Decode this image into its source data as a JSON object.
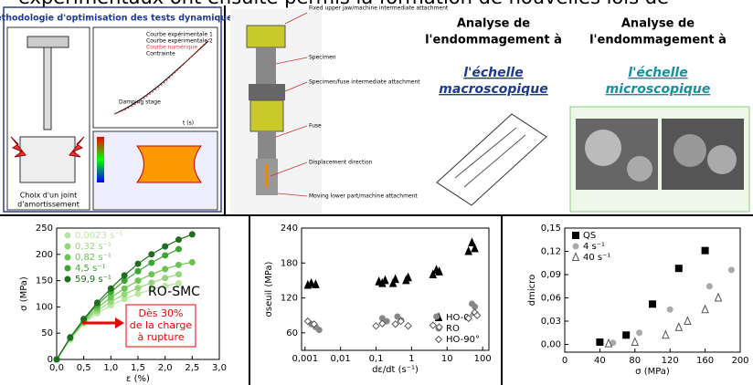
{
  "header": {
    "text": "expérimentaux ont ensuite permis la formation de nouvelles lois de"
  },
  "panel_method": {
    "title": "Méthodologie d'optimisation des tests dynamiques",
    "caption": [
      "Choix d'un joint",
      "d'amortissement"
    ],
    "plot_legend": [
      "Courbe expérimentale 1",
      "Courbe expérimentale 2",
      "Courbe numérique",
      "Contrainte"
    ],
    "plot_note": "Damping stage",
    "plot_xlabel": "t (s)"
  },
  "panel_setup": {
    "labels": [
      "Fixed upper jaw/machine intermediate attachment",
      "Specimen",
      "Specimen/fuse intermediate attachment",
      "Fuse",
      "Displacement direction",
      "Moving lower part/machine attachment"
    ]
  },
  "panel_macro": {
    "heading": [
      "Analyse de",
      "l'endommagement à"
    ],
    "link": [
      "l'échelle",
      "macroscopique"
    ]
  },
  "panel_micro": {
    "heading": [
      "Analyse de",
      "l'endommagement à"
    ],
    "link": [
      "l'échelle",
      "microscopique"
    ]
  },
  "chart_data": [
    {
      "type": "line",
      "y_label": "σ (MPa)",
      "x_label": "ε (%)",
      "label": "RO-SMC",
      "annotation": [
        "Dès 30%",
        "de la charge",
        "à rupture"
      ],
      "x": [
        0,
        0.25,
        0.5,
        0.75,
        1,
        1.25,
        1.5,
        1.75,
        2,
        2.25,
        2.5
      ],
      "xlim": [
        0,
        3
      ],
      "xticks": [
        {
          "value": 0,
          "label": "0,0"
        },
        {
          "value": 0.5,
          "label": "0,5"
        },
        {
          "value": 1,
          "label": "1,0"
        },
        {
          "value": 1.5,
          "label": "1,5"
        },
        {
          "value": 2,
          "label": "2,0"
        },
        {
          "value": 2.5,
          "label": "2,5"
        },
        {
          "value": 3,
          "label": "3,0"
        }
      ],
      "ylim": [
        0,
        250
      ],
      "yticks": [
        0,
        50,
        100,
        150,
        200,
        250
      ],
      "legend": "upper left",
      "series": [
        {
          "name": "0,0023 s⁻¹",
          "color": "#b8e6a0",
          "values": [
            0,
            38,
            68,
            88,
            103,
            115,
            125,
            133,
            140,
            145,
            null
          ]
        },
        {
          "name": "0,32 s⁻¹",
          "color": "#94d77a",
          "values": [
            0,
            40,
            70,
            93,
            110,
            124,
            136,
            146,
            155,
            162,
            null
          ]
        },
        {
          "name": "0,82 s⁻¹",
          "color": "#6cc450",
          "values": [
            0,
            40,
            72,
            98,
            118,
            135,
            150,
            162,
            172,
            180,
            185
          ]
        },
        {
          "name": "4,5 s⁻¹",
          "color": "#3fa532",
          "values": [
            0,
            42,
            75,
            104,
            128,
            150,
            168,
            184,
            198,
            210,
            null
          ]
        },
        {
          "name": "59,9 s⁻¹",
          "color": "#1e6e1e",
          "values": [
            0,
            42,
            77,
            108,
            135,
            160,
            182,
            200,
            215,
            228,
            238
          ]
        }
      ]
    },
    {
      "type": "scatter",
      "y_label": "σseuil (MPa)",
      "x_label": "dε/dt (s⁻¹)",
      "xlog": true,
      "xlim": [
        0.0008,
        150
      ],
      "xticks": [
        {
          "value": 0.001,
          "label": "0,001"
        },
        {
          "value": 0.01,
          "label": "0,01"
        },
        {
          "value": 0.1,
          "label": "0,1"
        },
        1,
        10,
        100
      ],
      "ylim": [
        30,
        240
      ],
      "yticks": [
        60,
        120,
        180,
        240
      ],
      "legend": "lower right",
      "series": [
        {
          "name": "HO-0°",
          "color": "#000000",
          "marker": "triangle",
          "filled": true,
          "x": [
            0.0012,
            0.0015,
            0.002,
            0.12,
            0.15,
            0.18,
            0.3,
            0.35,
            0.7,
            0.8,
            4,
            5,
            6,
            40,
            50,
            60
          ],
          "values": [
            142,
            145,
            143,
            148,
            145,
            150,
            145,
            152,
            150,
            155,
            160,
            168,
            165,
            200,
            215,
            205
          ]
        },
        {
          "name": "RO",
          "color": "#888888",
          "marker": "circle",
          "filled": true,
          "x": [
            0.0015,
            0.002,
            0.0025,
            0.15,
            0.2,
            0.4,
            0.5,
            5,
            50,
            60
          ],
          "values": [
            75,
            70,
            65,
            85,
            80,
            88,
            82,
            88,
            110,
            105
          ]
        },
        {
          "name": "HO-90°",
          "color": "#555555",
          "marker": "diamond",
          "filled": false,
          "x": [
            0.0012,
            0.0018,
            0.1,
            0.15,
            0.35,
            0.5,
            0.8,
            4,
            6,
            40,
            60,
            70
          ],
          "values": [
            80,
            75,
            72,
            76,
            75,
            80,
            72,
            73,
            70,
            85,
            95,
            90
          ]
        }
      ]
    },
    {
      "type": "scatter",
      "y_label": "dmicro",
      "x_label": "σ (MPa)",
      "xlim": [
        0,
        200
      ],
      "xticks": [
        0,
        40,
        80,
        120,
        160,
        200
      ],
      "ylim": [
        -0.01,
        0.15
      ],
      "yticks": [
        {
          "value": 0,
          "label": "0,00"
        },
        {
          "value": 0.03,
          "label": "0,03"
        },
        {
          "value": 0.06,
          "label": "0,06"
        },
        {
          "value": 0.09,
          "label": "0,09"
        },
        {
          "value": 0.12,
          "label": "0,12"
        },
        {
          "value": 0.15,
          "label": "0,15"
        }
      ],
      "legend": "upper left",
      "series": [
        {
          "name": "QS",
          "color": "#000000",
          "marker": "square",
          "filled": true,
          "x": [
            40,
            70,
            100,
            130,
            160
          ],
          "values": [
            0.003,
            0.012,
            0.052,
            0.098,
            0.121
          ]
        },
        {
          "name": "4 s⁻¹",
          "color": "#aaaaaa",
          "marker": "circle",
          "filled": true,
          "x": [
            55,
            85,
            120,
            165,
            190
          ],
          "values": [
            0.002,
            0.015,
            0.045,
            0.075,
            0.096
          ]
        },
        {
          "name": "40 s⁻¹",
          "color": "#555555",
          "marker": "triangle",
          "filled": false,
          "x": [
            50,
            80,
            115,
            130,
            140,
            160,
            175
          ],
          "values": [
            0.001,
            0.003,
            0.012,
            0.022,
            0.03,
            0.045,
            0.06
          ]
        }
      ]
    }
  ]
}
